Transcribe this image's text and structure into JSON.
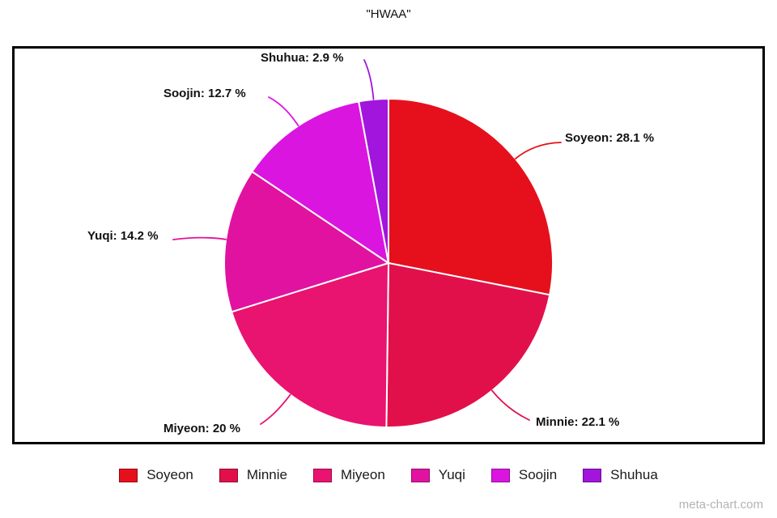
{
  "title": "\"HWAA\"",
  "watermark": "meta-chart.com",
  "chart_data": {
    "type": "pie",
    "title": "\"HWAA\"",
    "start_angle_deg": 0,
    "direction": "clockwise",
    "legend_position": "bottom",
    "slices": [
      {
        "label": "Soyeon",
        "value": 28.1,
        "color": "#e6101c",
        "callout": "Soyeon: 28.1 %"
      },
      {
        "label": "Minnie",
        "value": 22.1,
        "color": "#e1104b",
        "callout": "Minnie: 22.1 %"
      },
      {
        "label": "Miyeon",
        "value": 20,
        "color": "#e91370",
        "callout": "Miyeon: 20 %"
      },
      {
        "label": "Yuqi",
        "value": 14.2,
        "color": "#e112a0",
        "callout": "Yuqi: 14.2 %"
      },
      {
        "label": "Soojin",
        "value": 12.7,
        "color": "#da15e0",
        "callout": "Soojin: 12.7 %"
      },
      {
        "label": "Shuhua",
        "value": 2.9,
        "color": "#a215dc",
        "callout": "Shuhua: 2.9 %"
      }
    ]
  }
}
